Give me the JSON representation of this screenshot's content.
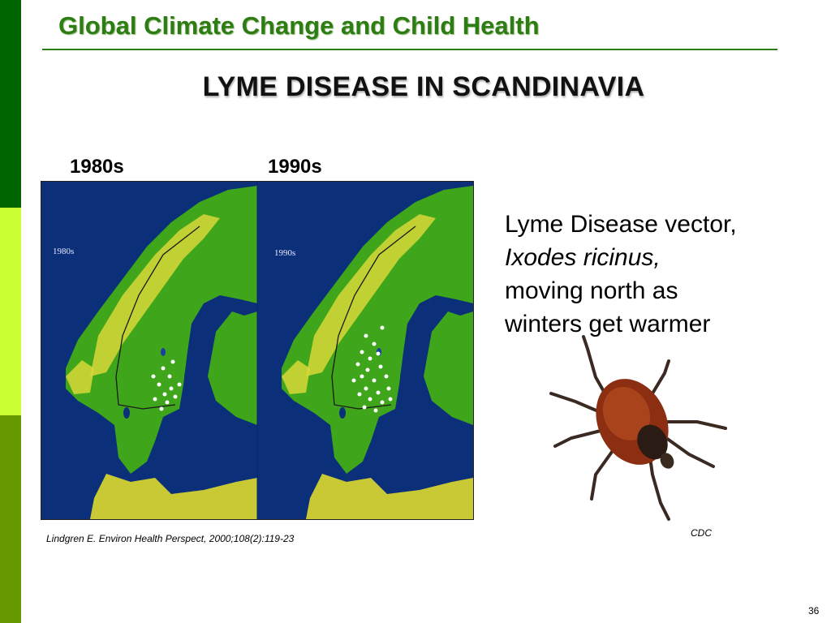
{
  "header": {
    "title": "Global Climate Change and Child Health"
  },
  "slide": {
    "title": "LYME DISEASE IN SCANDINAVIA",
    "decades": [
      "1980s",
      "1990s"
    ],
    "map_insets": [
      "1980s",
      "1990s"
    ],
    "caption": {
      "line1": "Lyme Disease vector,",
      "line2": "Ixodes ricinus,",
      "line3": "moving north as",
      "line4": "winters get warmer"
    },
    "image_credit": "CDC",
    "citation": "Lindgren E. Environ Health Perspect, 2000;108(2):119-23",
    "page_number": "36"
  },
  "colors": {
    "sidebar_top": "#006400",
    "sidebar_mid": "#ccff33",
    "sidebar_bottom": "#669900",
    "header_text": "#2e7d14",
    "rule": "#2e7d14",
    "sea": "#0c2f7a",
    "land": "#3fa51a",
    "highland": "#d8d83a"
  },
  "icons": {
    "tick_image": "tick-icon"
  }
}
